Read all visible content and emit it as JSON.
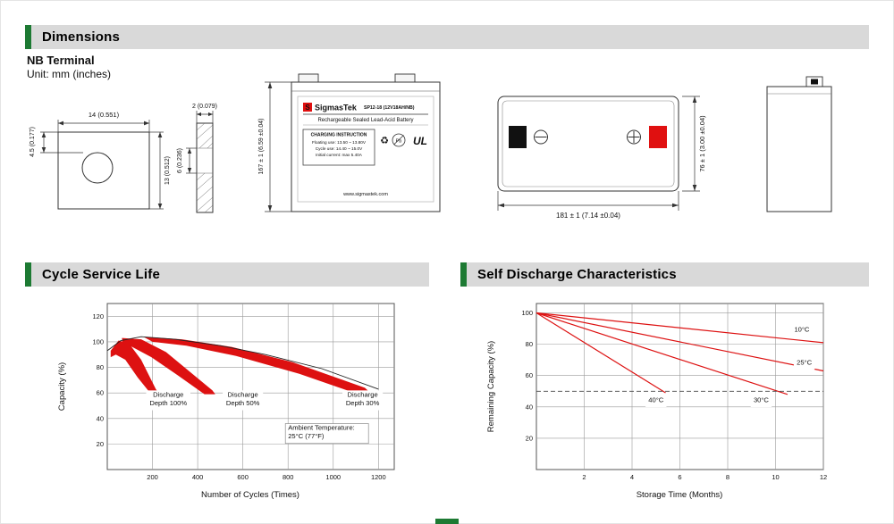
{
  "page": {
    "accent_green": "#1d7a33",
    "header_bg": "#d9d9d9",
    "brand_red": "#e01010",
    "chart_red": "#dd1111"
  },
  "sections": {
    "dimensions": {
      "title": "Dimensions",
      "subtitle": "NB Terminal",
      "unit": "Unit: mm (inches)"
    },
    "cycle_service_life": {
      "title": "Cycle Service Life"
    },
    "self_discharge": {
      "title": "Self Discharge Characteristics"
    }
  },
  "icons": {
    "recycle": "♻",
    "pb": "Pb",
    "ul": "UL"
  },
  "drawings": {
    "terminal_front": {
      "width_dim": "14 (0.551)",
      "hole_offset_dim": "4.5 (0.177)",
      "height_dim": "13 (0.512)"
    },
    "terminal_side": {
      "thickness_dim": "2 (0.079)",
      "mid_dim": "6 (0.236)"
    },
    "battery_front": {
      "brand_initial": "S",
      "brand": "SigmasTek",
      "model": "SP12-18 (12V18AH/NB)",
      "type_line": "Rechargeable Sealed Lead-Acid Battery",
      "charging_title": "CHARGING INSTRUCTION",
      "charging_lines": [
        "Floating use: 13.50 ~ 13.80V",
        "Cycle use: 14.40 ~ 15.0V",
        "Initial current: max 5.40A"
      ],
      "website": "www.sigmastek.com",
      "height_dim": "167 ± 1 (6.59 ±0.04)"
    },
    "top_view": {
      "width_dim": "181 ± 1 (7.14 ±0.04)",
      "depth_dim": "76 ± 1 (3.00 ±0.04)"
    }
  },
  "chart_data": [
    {
      "id": "cycle_service_life",
      "type": "area",
      "title": "Cycle Service Life",
      "xlabel": "Number of Cycles (Times)",
      "ylabel": "Capacity (%)",
      "xlim": [
        0,
        1270
      ],
      "ylim": [
        0,
        130
      ],
      "xticks": [
        200,
        400,
        600,
        800,
        1000,
        1200
      ],
      "yticks": [
        20,
        40,
        60,
        80,
        100,
        120
      ],
      "grid": true,
      "envelope": {
        "color": "#222222",
        "points": [
          [
            0,
            93
          ],
          [
            60,
            101
          ],
          [
            150,
            104
          ],
          [
            300,
            102
          ],
          [
            500,
            97
          ],
          [
            700,
            90
          ],
          [
            950,
            79
          ],
          [
            1200,
            63
          ]
        ]
      },
      "bands": [
        {
          "name": "Discharge Depth 100%",
          "color": "#dd1111",
          "points": [
            [
              15,
              93
            ],
            [
              50,
              101
            ],
            [
              95,
              99
            ],
            [
              150,
              86
            ],
            [
              215,
              63
            ],
            [
              232,
              59
            ],
            [
              190,
              60
            ],
            [
              135,
              72
            ],
            [
              80,
              86
            ],
            [
              38,
              90
            ],
            [
              15,
              88
            ]
          ]
        },
        {
          "name": "Discharge Depth 50%",
          "color": "#dd1111",
          "points": [
            [
              65,
              103
            ],
            [
              150,
              102
            ],
            [
              260,
              92
            ],
            [
              390,
              73
            ],
            [
              465,
              62
            ],
            [
              478,
              59
            ],
            [
              430,
              59
            ],
            [
              310,
              74
            ],
            [
              195,
              88
            ],
            [
              110,
              96
            ],
            [
              68,
              99
            ]
          ]
        },
        {
          "name": "Discharge Depth 30%",
          "color": "#dd1111",
          "points": [
            [
              160,
              104
            ],
            [
              330,
              102
            ],
            [
              550,
              96
            ],
            [
              820,
              84
            ],
            [
              1140,
              64
            ],
            [
              1165,
              60
            ],
            [
              1110,
              59
            ],
            [
              850,
              75
            ],
            [
              570,
              89
            ],
            [
              350,
              97
            ],
            [
              200,
              100
            ]
          ]
        }
      ],
      "annotations": [
        {
          "x": 270,
          "y": 57,
          "lines": [
            "Discharge",
            "Depth 100%"
          ]
        },
        {
          "x": 600,
          "y": 57,
          "lines": [
            "Discharge",
            "Depth 50%"
          ]
        },
        {
          "x": 1130,
          "y": 57,
          "lines": [
            "Discharge",
            "Depth 30%"
          ]
        },
        {
          "x": 800,
          "y": 31,
          "lines": [
            "Ambient Temperature:",
            "25°C (77°F)"
          ],
          "align": "start",
          "boxed": true
        }
      ]
    },
    {
      "id": "self_discharge",
      "type": "line",
      "title": "Self Discharge Characteristics",
      "xlabel": "Storage Time (Months)",
      "ylabel": "Remaining Capacity (%)",
      "xlim": [
        0,
        12
      ],
      "ylim": [
        0,
        106
      ],
      "xticks": [
        2,
        4,
        6,
        8,
        10,
        12
      ],
      "yticks": [
        20,
        40,
        60,
        80,
        100
      ],
      "grid": true,
      "dashed_line_y": 50,
      "series": [
        {
          "name": "10°C",
          "color": "#dd1111",
          "points": [
            [
              0,
              100
            ],
            [
              12,
              81
            ]
          ]
        },
        {
          "name": "25°C",
          "color": "#dd1111",
          "points": [
            [
              0,
              100
            ],
            [
              12,
              63
            ]
          ]
        },
        {
          "name": "30°C",
          "color": "#dd1111",
          "points": [
            [
              0,
              100
            ],
            [
              10.5,
              48
            ]
          ]
        },
        {
          "name": "40°C",
          "color": "#dd1111",
          "points": [
            [
              0,
              100
            ],
            [
              5.4,
              49
            ]
          ]
        }
      ],
      "annotations": [
        {
          "x": 11.1,
          "y": 88,
          "lines": [
            "10°C"
          ]
        },
        {
          "x": 11.2,
          "y": 67,
          "lines": [
            "25°C"
          ]
        },
        {
          "x": 5.0,
          "y": 43,
          "lines": [
            "40°C"
          ]
        },
        {
          "x": 9.4,
          "y": 43,
          "lines": [
            "30°C"
          ]
        }
      ]
    }
  ]
}
